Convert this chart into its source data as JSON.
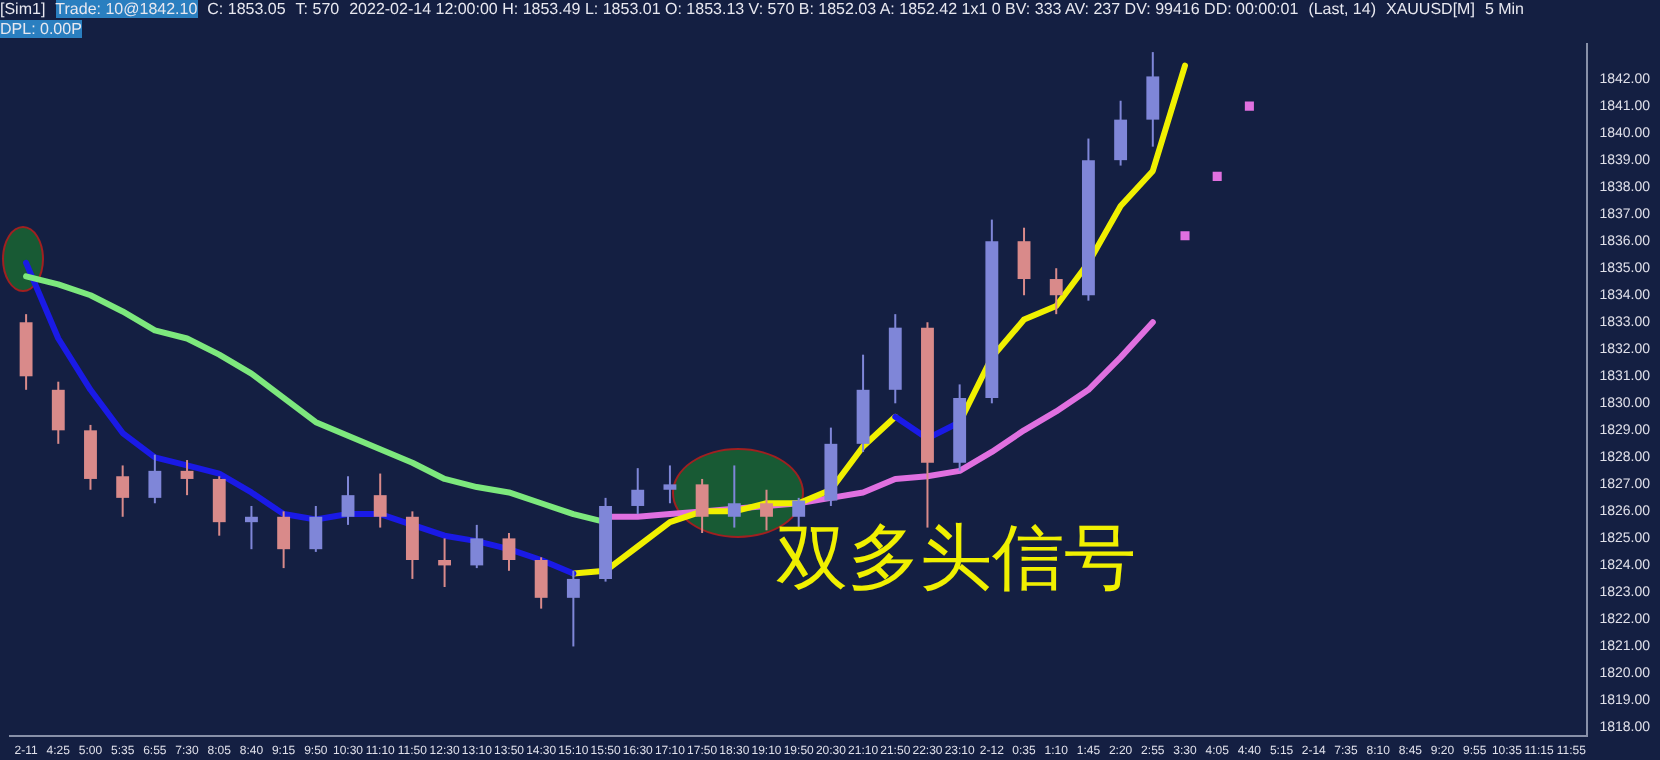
{
  "chart_data": {
    "type": "candlestick",
    "title": "XAUUSD[M]",
    "subtitle": "5 Min",
    "annotations": [
      "[Sim1]",
      "Trade: 10@1842.10",
      "C: 1853.05",
      "T: 570",
      "2022-02-14 12:00:00 H: 1853.49 L: 1853.01 O: 1853.13 V: 570 B: 1852.03 A: 1852.42 1x1 0 BV: 333 AV: 237 DV: 99416 DD: 00:00:01",
      "(Last, 14)",
      "DPL: 0.00P",
      "双多头信号"
    ],
    "categories": [
      "2-11",
      "4:25",
      "5:00",
      "5:35",
      "6:55",
      "7:30",
      "8:05",
      "8:40",
      "9:15",
      "9:50",
      "10:30",
      "11:10",
      "11:50",
      "12:30",
      "13:10",
      "13:50",
      "14:30",
      "15:10",
      "15:50",
      "16:30",
      "17:10",
      "17:50",
      "18:30",
      "19:10",
      "19:50",
      "20:30",
      "21:10",
      "21:50",
      "22:30",
      "23:10",
      "2-12",
      "0:35",
      "1:10",
      "1:45",
      "2:20",
      "2:55",
      "3:30",
      "4:05",
      "4:40",
      "5:15",
      "2-14",
      "7:35",
      "8:10",
      "8:45",
      "9:20",
      "9:55",
      "10:35",
      "11:15",
      "11:55"
    ],
    "ohlc": [
      [
        1833,
        1833.3,
        1830.5,
        1831
      ],
      [
        1830.5,
        1830.8,
        1828.5,
        1829
      ],
      [
        1829,
        1829.2,
        1826.8,
        1827.2
      ],
      [
        1827.3,
        1827.7,
        1825.8,
        1826.5
      ],
      [
        1826.5,
        1828.1,
        1826.3,
        1827.5
      ],
      [
        1827.5,
        1827.9,
        1826.6,
        1827.2
      ],
      [
        1827.2,
        1827.3,
        1825.1,
        1825.6
      ],
      [
        1825.6,
        1826.2,
        1824.6,
        1825.8
      ],
      [
        1825.8,
        1826,
        1823.9,
        1824.6
      ],
      [
        1824.6,
        1826.2,
        1824.5,
        1825.8
      ],
      [
        1825.8,
        1827.3,
        1825.5,
        1826.6
      ],
      [
        1826.6,
        1827.4,
        1825.4,
        1825.8
      ],
      [
        1825.8,
        1826,
        1823.5,
        1824.2
      ],
      [
        1824.2,
        1825,
        1823.2,
        1824
      ],
      [
        1824,
        1825.5,
        1823.9,
        1825
      ],
      [
        1825,
        1825.2,
        1823.8,
        1824.2
      ],
      [
        1824.2,
        1824.3,
        1822.4,
        1822.8
      ],
      [
        1822.8,
        1823.8,
        1821,
        1823.5
      ],
      [
        1823.5,
        1826.5,
        1823.4,
        1826.2
      ],
      [
        1826.2,
        1827.6,
        1825.9,
        1826.8
      ],
      [
        1826.8,
        1827.7,
        1826.3,
        1827
      ],
      [
        1827,
        1827.2,
        1825.2,
        1825.8
      ],
      [
        1825.8,
        1827.7,
        1825.4,
        1826.3
      ],
      [
        1826.3,
        1826.8,
        1825.3,
        1825.8
      ],
      [
        1825.8,
        1826.5,
        1825.3,
        1826.4
      ],
      [
        1826.4,
        1829.1,
        1826.2,
        1828.5
      ],
      [
        1828.5,
        1831.8,
        1828.2,
        1830.5
      ],
      [
        1830.5,
        1833.3,
        1830,
        1832.8
      ],
      [
        1832.8,
        1833,
        1825.4,
        1827.8
      ],
      [
        1827.8,
        1830.7,
        1827.5,
        1830.2
      ],
      [
        1830.2,
        1836.8,
        1830,
        1836
      ],
      [
        1836,
        1836.5,
        1834,
        1834.6
      ],
      [
        1834.6,
        1835,
        1833.3,
        1834
      ],
      [
        1834,
        1839.8,
        1833.8,
        1839
      ],
      [
        1839,
        1841.2,
        1838.8,
        1840.5
      ],
      [
        1840.5,
        1843,
        1839.5,
        1842.1
      ],
      null,
      null,
      null,
      null,
      null,
      null,
      null,
      null,
      null,
      null,
      null,
      null,
      null
    ],
    "colors": [
      "#d98a8a",
      "#d98a8a",
      "#d98a8a",
      "#d98a8a",
      "#7f86d8",
      "#d98a8a",
      "#d98a8a",
      "#7f86d8",
      "#d98a8a",
      "#7f86d8",
      "#7f86d8",
      "#d98a8a",
      "#d98a8a",
      "#d98a8a",
      "#7f86d8",
      "#d98a8a",
      "#d98a8a",
      "#7f86d8",
      "#7f86d8",
      "#7f86d8",
      "#7f86d8",
      "#d98a8a",
      "#7f86d8",
      "#d98a8a",
      "#7f86d8",
      "#7f86d8",
      "#7f86d8",
      "#7f86d8",
      "#d98a8a",
      "#7f86d8",
      "#7f86d8",
      "#d98a8a",
      "#d98a8a",
      "#7f86d8",
      "#7f86d8",
      "#7f86d8",
      null,
      null,
      null,
      null,
      null,
      null,
      null,
      null,
      null,
      null,
      null,
      null,
      null
    ],
    "series": [
      {
        "type": "line",
        "color": "#7de87d",
        "values": [
          1834.7,
          1834.4,
          1834,
          1833.4,
          1832.7,
          1832.4,
          1831.8,
          1831.1,
          1830.2,
          1829.3,
          1828.8,
          1828.3,
          1827.8,
          1827.2,
          1826.9,
          1826.7,
          1826.3,
          1825.9,
          1825.6,
          null,
          null,
          null,
          null,
          null,
          null,
          null,
          null,
          null,
          null,
          null,
          null,
          null,
          null,
          null,
          null,
          null,
          null,
          null,
          null,
          null,
          null,
          null,
          null,
          null,
          null,
          null,
          null,
          null,
          null
        ]
      },
      {
        "type": "line",
        "color": "#1a1ae6",
        "values": [
          1835.2,
          1832.4,
          1830.5,
          1828.9,
          1828,
          1827.7,
          1827.4,
          1826.7,
          1825.9,
          1825.7,
          1825.9,
          1825.9,
          1825.5,
          1825.1,
          1824.9,
          1824.6,
          1824.2,
          1823.7,
          null,
          null,
          null,
          null,
          null,
          null,
          null,
          null,
          null,
          1829.5,
          1828.7,
          1829.3,
          null,
          null,
          null,
          null,
          null,
          null,
          null,
          null,
          null,
          null,
          null,
          null,
          null,
          null,
          null,
          null,
          null,
          null,
          null
        ]
      },
      {
        "type": "line",
        "color": "#f0f000",
        "values": [
          null,
          null,
          null,
          null,
          null,
          null,
          null,
          null,
          null,
          null,
          null,
          null,
          null,
          null,
          null,
          null,
          null,
          1823.7,
          1823.8,
          1824.7,
          1825.6,
          1826,
          1826,
          1826.3,
          1826.3,
          1826.8,
          1828.4,
          1829.5,
          null,
          1829.3,
          1831.7,
          1833.1,
          1833.6,
          1835.2,
          1837.3,
          1838.6,
          1842.5,
          null,
          null,
          null,
          null,
          null,
          null,
          null,
          null,
          null,
          null,
          null,
          null
        ]
      },
      {
        "type": "line",
        "color": "#e070e0",
        "values": [
          null,
          null,
          null,
          null,
          null,
          null,
          null,
          null,
          null,
          null,
          null,
          null,
          null,
          null,
          null,
          null,
          null,
          null,
          1825.8,
          1825.8,
          1825.9,
          1826,
          1826.1,
          1826.2,
          1826.3,
          1826.5,
          1826.7,
          1827.2,
          1827.3,
          1827.5,
          1828.2,
          1829,
          1829.7,
          1830.5,
          1831.7,
          1833,
          null,
          null,
          null,
          null,
          null,
          null,
          null,
          null,
          null,
          null,
          null,
          null,
          null
        ]
      },
      {
        "type": "scatter",
        "color": "#e070e0",
        "marker": "square",
        "values": [
          null,
          null,
          null,
          null,
          null,
          null,
          null,
          null,
          null,
          null,
          null,
          null,
          null,
          null,
          null,
          null,
          null,
          null,
          null,
          null,
          null,
          null,
          null,
          null,
          null,
          null,
          null,
          null,
          null,
          null,
          null,
          null,
          null,
          null,
          null,
          null,
          1836.2,
          1838.4,
          1841,
          null,
          null,
          null,
          null,
          null,
          null,
          null,
          null,
          null,
          null
        ]
      }
    ],
    "ylim": [
      1817.7,
      1843.3
    ],
    "yticks": [
      {
        "value": 1818,
        "label": "1818.00"
      },
      {
        "value": 1819,
        "label": "1819.00"
      },
      {
        "value": 1820,
        "label": "1820.00"
      },
      {
        "value": 1821,
        "label": "1821.00"
      },
      {
        "value": 1822,
        "label": "1822.00"
      },
      {
        "value": 1823,
        "label": "1823.00"
      },
      {
        "value": 1824,
        "label": "1824.00"
      },
      {
        "value": 1825,
        "label": "1825.00"
      },
      {
        "value": 1826,
        "label": "1826.00"
      },
      {
        "value": 1827,
        "label": "1827.00"
      },
      {
        "value": 1828,
        "label": "1828.00"
      },
      {
        "value": 1829,
        "label": "1829.00"
      },
      {
        "value": 1830,
        "label": "1830.00"
      },
      {
        "value": 1831,
        "label": "1831.00"
      },
      {
        "value": 1832,
        "label": "1832.00"
      },
      {
        "value": 1833,
        "label": "1833.00"
      },
      {
        "value": 1834,
        "label": "1834.00"
      },
      {
        "value": 1835,
        "label": "1835.00"
      },
      {
        "value": 1836,
        "label": "1836.00"
      },
      {
        "value": 1837,
        "label": "1837.00"
      },
      {
        "value": 1838,
        "label": "1838.00"
      },
      {
        "value": 1839,
        "label": "1839.00"
      },
      {
        "value": 1840,
        "label": "1840.00"
      },
      {
        "value": 1841,
        "label": "1841.00"
      },
      {
        "value": 1842,
        "label": "1842.00"
      }
    ],
    "grid": false,
    "legend": false
  }
}
